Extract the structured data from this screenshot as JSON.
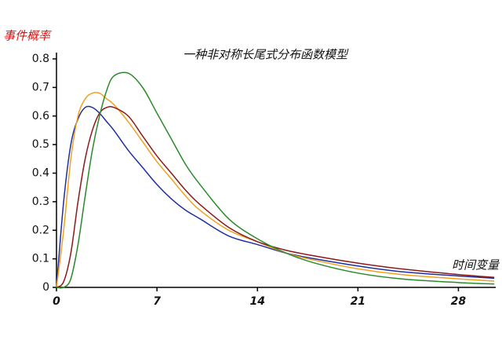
{
  "chart_data": {
    "type": "line",
    "title": "一种非对称长尾式分布函数模型",
    "y_label": "事件概率",
    "x_label": "时间变量",
    "x": [
      0,
      0.5,
      1,
      1.5,
      2,
      2.5,
      3,
      3.5,
      4,
      5,
      6,
      7,
      8,
      9,
      10,
      12,
      14,
      16,
      18,
      21,
      24,
      28,
      30.5
    ],
    "series": [
      {
        "color": "#1f2fa0",
        "values": [
          0,
          0.3,
          0.5,
          0.59,
          0.63,
          0.63,
          0.61,
          0.58,
          0.55,
          0.48,
          0.42,
          0.36,
          0.31,
          0.27,
          0.24,
          0.18,
          0.15,
          0.12,
          0.1,
          0.075,
          0.055,
          0.04,
          0.032
        ]
      },
      {
        "color": "#f0a020",
        "values": [
          0,
          0.2,
          0.45,
          0.6,
          0.66,
          0.68,
          0.68,
          0.66,
          0.64,
          0.58,
          0.51,
          0.44,
          0.38,
          0.32,
          0.27,
          0.2,
          0.16,
          0.12,
          0.095,
          0.065,
          0.045,
          0.03,
          0.022
        ]
      },
      {
        "color": "#8b1a1a",
        "values": [
          0,
          0.02,
          0.12,
          0.3,
          0.45,
          0.55,
          0.61,
          0.63,
          0.63,
          0.6,
          0.53,
          0.46,
          0.4,
          0.34,
          0.29,
          0.21,
          0.16,
          0.13,
          0.11,
          0.085,
          0.065,
          0.045,
          0.035
        ]
      },
      {
        "color": "#2a8a2a",
        "values": [
          0,
          0,
          0.03,
          0.15,
          0.32,
          0.48,
          0.6,
          0.69,
          0.74,
          0.75,
          0.7,
          0.61,
          0.52,
          0.43,
          0.36,
          0.24,
          0.17,
          0.12,
          0.085,
          0.05,
          0.03,
          0.017,
          0.012
        ]
      }
    ],
    "xlim": [
      0,
      30.6
    ],
    "xticks": [
      0,
      7,
      14,
      21,
      28
    ],
    "ylim": [
      0,
      0.8
    ],
    "yticks": [
      0,
      0.1,
      0.2,
      0.3,
      0.4,
      0.5,
      0.6,
      0.7,
      0.8
    ]
  }
}
